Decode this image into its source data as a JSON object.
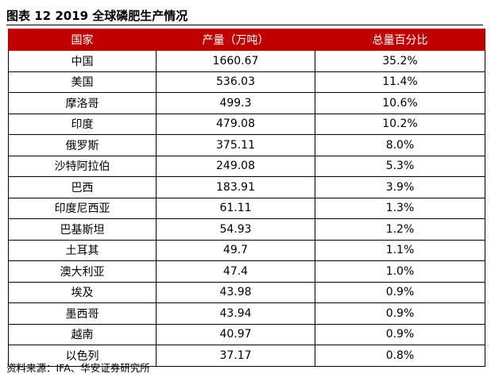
{
  "title": "图表 12 2019 全球磷肥生产情况",
  "table": {
    "headers": [
      "国家",
      "产量（万吨）",
      "总量百分比"
    ],
    "rows": [
      [
        "中国",
        "1660.67",
        "35.2%"
      ],
      [
        "美国",
        "536.03",
        "11.4%"
      ],
      [
        "摩洛哥",
        "499.3",
        "10.6%"
      ],
      [
        "印度",
        "479.08",
        "10.2%"
      ],
      [
        "俄罗斯",
        "375.11",
        "8.0%"
      ],
      [
        "沙特阿拉伯",
        "249.08",
        "5.3%"
      ],
      [
        "巴西",
        "183.91",
        "3.9%"
      ],
      [
        "印度尼西亚",
        "61.11",
        "1.3%"
      ],
      [
        "巴基斯坦",
        "54.93",
        "1.2%"
      ],
      [
        "土耳其",
        "49.7",
        "1.1%"
      ],
      [
        "澳大利亚",
        "47.4",
        "1.0%"
      ],
      [
        "埃及",
        "43.98",
        "0.9%"
      ],
      [
        "墨西哥",
        "43.94",
        "0.9%"
      ],
      [
        "越南",
        "40.97",
        "0.9%"
      ],
      [
        "以色列",
        "37.17",
        "0.8%"
      ]
    ]
  },
  "source": "资料来源：IFA、华安证券研究所",
  "colors": {
    "header_bg": "#c00000",
    "header_text": "#ffffff"
  }
}
